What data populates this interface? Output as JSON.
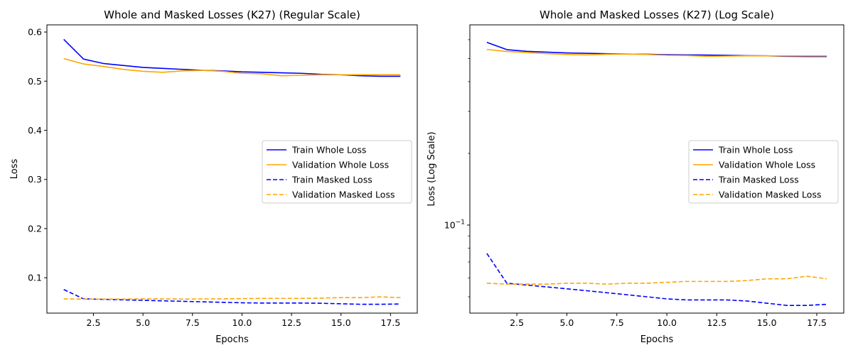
{
  "chart_data": [
    {
      "type": "line",
      "title": "Whole and Masked Losses (K27) (Regular Scale)",
      "xlabel": "Epochs",
      "ylabel": "Loss",
      "scale": "linear",
      "xlim": [
        0.15,
        18.85
      ],
      "ylim": [
        0.028,
        0.6146
      ],
      "xticks": [
        2.5,
        5.0,
        7.5,
        10.0,
        12.5,
        15.0,
        17.5
      ],
      "xtick_labels": [
        "2.5",
        "5.0",
        "7.5",
        "10.0",
        "12.5",
        "15.0",
        "17.5"
      ],
      "yticks": [
        0.1,
        0.2,
        0.3,
        0.4,
        0.5,
        0.6
      ],
      "ytick_labels": [
        "0.1",
        "0.2",
        "0.3",
        "0.4",
        "0.5",
        "0.6"
      ],
      "legend_position": "center-right",
      "grid": false,
      "x": [
        1,
        2,
        3,
        4,
        5,
        6,
        7,
        8,
        9,
        10,
        11,
        12,
        13,
        14,
        15,
        16,
        17,
        18
      ],
      "series": [
        {
          "name": "Train Whole Loss",
          "color": "#0000ff",
          "dash": "solid",
          "values": [
            0.585,
            0.545,
            0.536,
            0.532,
            0.528,
            0.526,
            0.524,
            0.522,
            0.521,
            0.519,
            0.518,
            0.517,
            0.516,
            0.514,
            0.513,
            0.511,
            0.51,
            0.51
          ]
        },
        {
          "name": "Validation Whole Loss",
          "color": "#ffa500",
          "dash": "solid",
          "values": [
            0.546,
            0.535,
            0.53,
            0.524,
            0.52,
            0.518,
            0.521,
            0.522,
            0.52,
            0.516,
            0.515,
            0.511,
            0.512,
            0.513,
            0.513,
            0.513,
            0.513,
            0.513
          ]
        },
        {
          "name": "Train Masked Loss",
          "color": "#0000ff",
          "dash": "dashed",
          "values": [
            0.076,
            0.057,
            0.056,
            0.055,
            0.054,
            0.053,
            0.052,
            0.051,
            0.05,
            0.049,
            0.0485,
            0.0485,
            0.0485,
            0.048,
            0.047,
            0.046,
            0.046,
            0.0465
          ]
        },
        {
          "name": "Validation Masked Loss",
          "color": "#ffa500",
          "dash": "dashed",
          "values": [
            0.057,
            0.0565,
            0.0565,
            0.0565,
            0.057,
            0.057,
            0.0565,
            0.057,
            0.057,
            0.0575,
            0.058,
            0.058,
            0.058,
            0.0585,
            0.0595,
            0.0595,
            0.061,
            0.0595
          ]
        }
      ]
    },
    {
      "type": "line",
      "title": "Whole and Masked Losses (K27) (Log Scale)",
      "xlabel": "Epochs",
      "ylabel": "Loss (Log Scale)",
      "scale": "log",
      "xlim": [
        0.15,
        18.85
      ],
      "ylim": [
        0.0427,
        0.6925
      ],
      "xticks": [
        2.5,
        5.0,
        7.5,
        10.0,
        12.5,
        15.0,
        17.5
      ],
      "xtick_labels": [
        "2.5",
        "5.0",
        "7.5",
        "10.0",
        "12.5",
        "15.0",
        "17.5"
      ],
      "yticks_major": [
        0.1
      ],
      "ytick_major_base": "10",
      "ytick_major_exp": "−1",
      "yticks_minor": [
        0.05,
        0.06,
        0.07,
        0.08,
        0.09,
        0.2,
        0.3,
        0.4,
        0.5,
        0.6
      ],
      "legend_position": "center-right",
      "grid": false,
      "x": [
        1,
        2,
        3,
        4,
        5,
        6,
        7,
        8,
        9,
        10,
        11,
        12,
        13,
        14,
        15,
        16,
        17,
        18
      ],
      "series": [
        {
          "name": "Train Whole Loss",
          "color": "#0000ff",
          "dash": "solid",
          "values": [
            0.585,
            0.545,
            0.536,
            0.532,
            0.528,
            0.526,
            0.524,
            0.522,
            0.521,
            0.519,
            0.518,
            0.517,
            0.516,
            0.514,
            0.513,
            0.511,
            0.51,
            0.51
          ]
        },
        {
          "name": "Validation Whole Loss",
          "color": "#ffa500",
          "dash": "solid",
          "values": [
            0.546,
            0.535,
            0.53,
            0.524,
            0.52,
            0.518,
            0.521,
            0.522,
            0.52,
            0.516,
            0.515,
            0.511,
            0.512,
            0.513,
            0.513,
            0.513,
            0.513,
            0.513
          ]
        },
        {
          "name": "Train Masked Loss",
          "color": "#0000ff",
          "dash": "dashed",
          "values": [
            0.076,
            0.057,
            0.056,
            0.055,
            0.054,
            0.053,
            0.052,
            0.051,
            0.05,
            0.049,
            0.0485,
            0.0485,
            0.0485,
            0.048,
            0.047,
            0.046,
            0.046,
            0.0465
          ]
        },
        {
          "name": "Validation Masked Loss",
          "color": "#ffa500",
          "dash": "dashed",
          "values": [
            0.057,
            0.0565,
            0.0565,
            0.0565,
            0.057,
            0.057,
            0.0565,
            0.057,
            0.057,
            0.0575,
            0.058,
            0.058,
            0.058,
            0.0585,
            0.0595,
            0.0595,
            0.061,
            0.0595
          ]
        }
      ]
    }
  ]
}
